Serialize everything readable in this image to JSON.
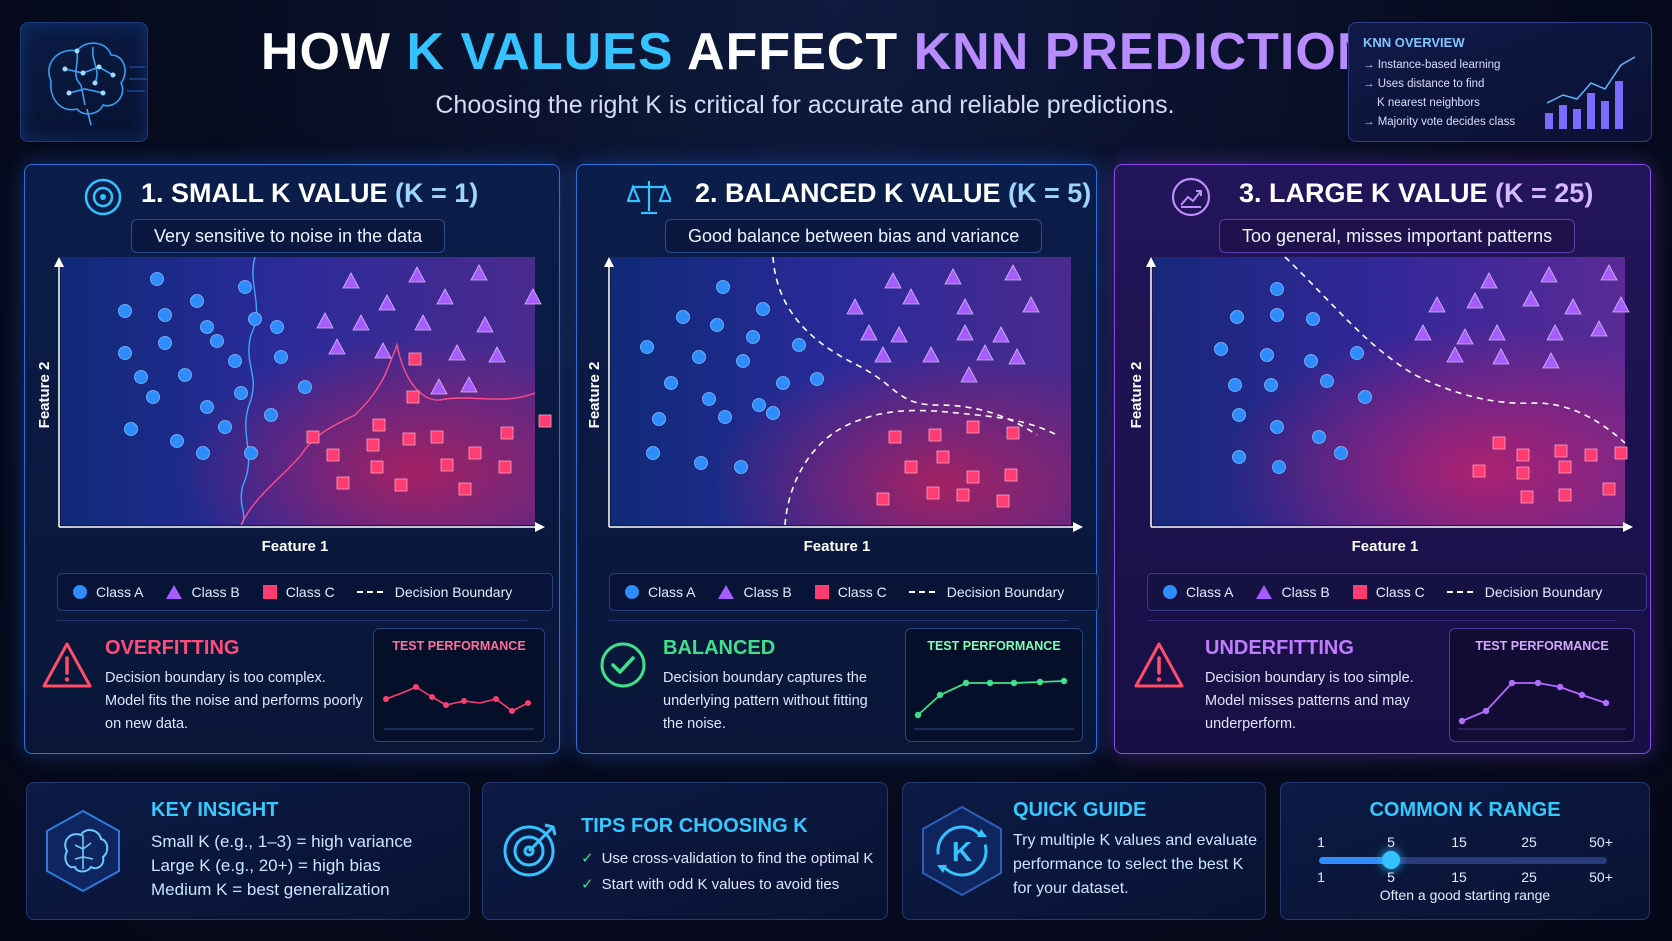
{
  "header": {
    "title_parts": [
      "HOW",
      "K VALUES",
      "AFFECT",
      "KNN PREDICTIONS"
    ],
    "subtitle": "Choosing the right K is critical for accurate and reliable predictions."
  },
  "overview": {
    "title": "KNN OVERVIEW",
    "items": [
      "Instance-based learning",
      "Uses distance to find",
      "K nearest neighbors",
      "Majority vote decides class"
    ]
  },
  "panels": [
    {
      "title": "1. SMALL K VALUE ",
      "k_label": "(K = 1)",
      "subtitle": "Very sensitive to noise in the data",
      "status_title": "OVERFITTING",
      "status_lines": [
        "Decision boundary is too complex.",
        "Model fits the noise and performs poorly",
        "on new data."
      ],
      "perf_title": "TEST PERFORMANCE",
      "accent": "#ff4d7a"
    },
    {
      "title": "2. BALANCED K VALUE ",
      "k_label": "(K = 5)",
      "subtitle": "Good balance between bias and variance",
      "status_title": "BALANCED",
      "status_lines": [
        "Decision boundary captures the",
        "underlying pattern without fitting",
        "the noise."
      ],
      "perf_title": "TEST PERFORMANCE",
      "accent": "#3ee08a"
    },
    {
      "title": "3. LARGE K VALUE ",
      "k_label": "(K = 25)",
      "subtitle": "Too general, misses important patterns",
      "status_title": "UNDERFITTING",
      "status_lines": [
        "Decision boundary is too simple.",
        "Model misses patterns and may",
        "underperform."
      ],
      "perf_title": "TEST PERFORMANCE",
      "accent": "#b06bff"
    }
  ],
  "axes": {
    "x_label": "Feature 1",
    "y_label": "Feature 2"
  },
  "legend": {
    "class_a": "Class A",
    "class_b": "Class B",
    "class_c": "Class C",
    "boundary": "Decision Boundary"
  },
  "cards": {
    "insight": {
      "title": "KEY INSIGHT",
      "lines": [
        "Small K (e.g., 1–3) = high variance",
        "Large K (e.g., 20+) = high bias",
        "Medium K = best generalization"
      ]
    },
    "tips": {
      "title": "TIPS FOR CHOOSING K",
      "items": [
        "Use cross-validation to find the optimal K",
        "Start with odd K values to avoid ties"
      ]
    },
    "guide": {
      "title": "QUICK GUIDE",
      "lines": [
        "Try multiple K values and evaluate",
        "performance to select the best K",
        "for your dataset."
      ],
      "badge": "K"
    },
    "range": {
      "title": "COMMON K RANGE",
      "ticks": [
        "1",
        "5",
        "15",
        "25",
        "50+"
      ],
      "selected": "5",
      "caption": "Often a good starting range"
    }
  },
  "colors": {
    "class_a": "#2f8cff",
    "class_b": "#a65cff",
    "class_c": "#ff3d73",
    "cyan": "#34c3ff",
    "violet": "#b88cff"
  }
}
